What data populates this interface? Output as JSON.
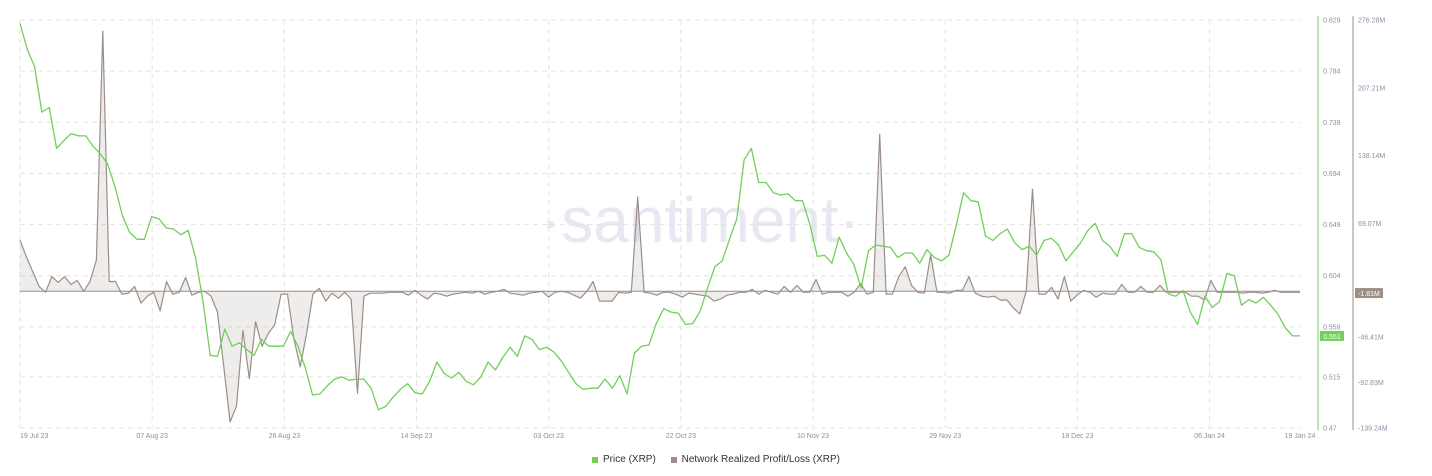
{
  "watermark": "·santiment·",
  "legend": [
    {
      "label": "Price (XRP)",
      "color": "#71cf5a"
    },
    {
      "label": "Network Realized Profit/Loss (XRP)",
      "color": "#9c8e86"
    }
  ],
  "chart_data": {
    "type": "line",
    "x_ticks": [
      "19 Jul 23",
      "07 Aug 23",
      "26 Aug 23",
      "14 Sep 23",
      "03 Oct 23",
      "22 Oct 23",
      "10 Nov 23",
      "29 Nov 23",
      "18 Dec 23",
      "06 Jan 24",
      "19 Jan 24"
    ],
    "x_range": [
      "2023-07-19",
      "2024-01-19"
    ],
    "y_left": {
      "ticks": [
        "0.829",
        "0.784",
        "0.739",
        "0.694",
        "0.649",
        "0.604",
        "0.559",
        "0.515",
        "0.47"
      ],
      "range": [
        0.47,
        0.829
      ]
    },
    "y_right": {
      "ticks": [
        "276.28M",
        "207.21M",
        "138.14M",
        "69.07M",
        "-46.41M",
        "-92.83M",
        "-139.24M"
      ],
      "range": [
        -139.24,
        276.28
      ],
      "unit": "M"
    },
    "last_price_label": "0.551",
    "last_nrpl_label": "-1.81M",
    "series": [
      {
        "name": "Price (XRP)",
        "color": "#71cf5a",
        "axis": "left",
        "values": [
          0.826,
          0.803,
          0.788,
          0.748,
          0.752,
          0.716,
          0.723,
          0.729,
          0.727,
          0.727,
          0.718,
          0.711,
          0.702,
          0.682,
          0.657,
          0.642,
          0.636,
          0.636,
          0.656,
          0.654,
          0.646,
          0.645,
          0.64,
          0.644,
          0.62,
          0.582,
          0.534,
          0.533,
          0.557,
          0.542,
          0.545,
          0.539,
          0.534,
          0.548,
          0.542,
          0.542,
          0.542,
          0.555,
          0.542,
          0.523,
          0.499,
          0.5,
          0.507,
          0.513,
          0.515,
          0.512,
          0.513,
          0.513,
          0.505,
          0.486,
          0.489,
          0.497,
          0.504,
          0.509,
          0.501,
          0.5,
          0.511,
          0.528,
          0.518,
          0.514,
          0.519,
          0.511,
          0.508,
          0.515,
          0.528,
          0.521,
          0.532,
          0.541,
          0.533,
          0.551,
          0.548,
          0.539,
          0.541,
          0.537,
          0.529,
          0.519,
          0.509,
          0.504,
          0.505,
          0.505,
          0.513,
          0.505,
          0.516,
          0.5,
          0.536,
          0.542,
          0.543,
          0.562,
          0.575,
          0.572,
          0.571,
          0.561,
          0.562,
          0.573,
          0.593,
          0.612,
          0.617,
          0.636,
          0.654,
          0.706,
          0.716,
          0.686,
          0.686,
          0.677,
          0.675,
          0.676,
          0.67,
          0.67,
          0.649,
          0.621,
          0.622,
          0.615,
          0.638,
          0.624,
          0.614,
          0.593,
          0.626,
          0.631,
          0.63,
          0.629,
          0.62,
          0.624,
          0.624,
          0.615,
          0.627,
          0.62,
          0.617,
          0.622,
          0.648,
          0.677,
          0.67,
          0.669,
          0.639,
          0.635,
          0.641,
          0.645,
          0.633,
          0.627,
          0.63,
          0.622,
          0.635,
          0.637,
          0.631,
          0.617,
          0.625,
          0.633,
          0.644,
          0.65,
          0.635,
          0.63,
          0.621,
          0.641,
          0.641,
          0.629,
          0.626,
          0.625,
          0.618,
          0.588,
          0.586,
          0.591,
          0.572,
          0.561,
          0.586,
          0.576,
          0.581,
          0.606,
          0.604,
          0.578,
          0.583,
          0.58,
          0.585,
          0.578,
          0.57,
          0.558,
          0.551,
          0.551
        ]
      },
      {
        "name": "Network Realized Profit/Loss (XRP)",
        "color": "#9c8e86",
        "axis": "right",
        "values": [
          52,
          35,
          20,
          5,
          -1,
          15,
          9,
          15,
          7,
          11,
          0,
          10,
          32,
          265,
          10,
          10,
          -3,
          -2,
          5,
          -12,
          -5,
          -1,
          -20,
          10,
          -3,
          -1,
          14,
          -4,
          -1,
          0,
          -5,
          -21,
          -77,
          -133,
          -117,
          -40,
          -89,
          -31,
          -56,
          -43,
          -34,
          -3,
          -3,
          -48,
          -77,
          -43,
          -3,
          3,
          -10,
          -2,
          -7,
          -1,
          -8,
          -104,
          -5,
          -2,
          -2,
          -2,
          -1,
          -1,
          -1,
          -4,
          1,
          -4,
          -8,
          -2,
          -3,
          -5,
          -3,
          -2,
          -1,
          -2,
          0,
          -3,
          -1,
          0,
          2,
          -2,
          -3,
          -4,
          -2,
          -1,
          0,
          -6,
          -1,
          0,
          -1,
          -4,
          -7,
          0,
          10,
          -10,
          -10,
          -10,
          -1,
          -2,
          -1,
          96,
          -1,
          -2,
          -4,
          -1,
          -1,
          -3,
          -6,
          -2,
          -3,
          -4,
          -5,
          -10,
          -8,
          -4,
          -3,
          -1,
          -1,
          2,
          -3,
          1,
          -1,
          -3,
          5,
          -1,
          6,
          -1,
          -1,
          12,
          -3,
          -1,
          -1,
          -1,
          -5,
          -1,
          8,
          -3,
          -1,
          160,
          -3,
          -3,
          15,
          25,
          6,
          -1,
          -2,
          37,
          -1,
          -1,
          -2,
          1,
          1,
          15,
          -2,
          -5,
          -6,
          -5,
          -9,
          -9,
          -17,
          -23,
          0,
          104,
          -3,
          -3,
          4,
          -8,
          15,
          -10,
          -4,
          1,
          -1,
          -6,
          -2,
          -3,
          -3,
          7,
          -1,
          -1,
          5,
          -1,
          -1,
          6,
          -1,
          -1,
          -1,
          -1,
          -5,
          -5,
          -9,
          11,
          -1,
          -1,
          -1,
          -1,
          -2,
          -1,
          -1,
          -2,
          -1,
          1,
          -1,
          -1,
          -1,
          -1
        ]
      }
    ]
  }
}
